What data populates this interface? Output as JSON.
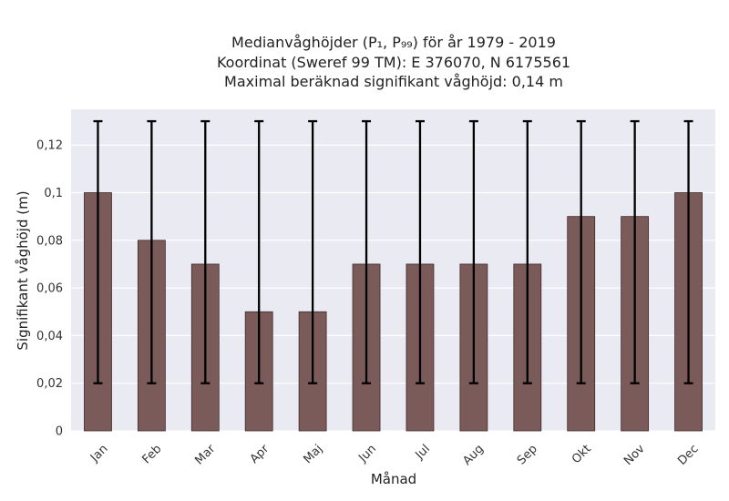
{
  "chart_data": {
    "type": "bar",
    "title_lines": [
      "Medianvåghöjder (P₁, P₉₉) för år 1979 - 2019",
      "Koordinat (Sweref 99 TM): E 376070, N 6175561",
      "Maximal beräknad signifikant våghöjd: 0,14 m"
    ],
    "xlabel": "Månad",
    "ylabel": "Signifikant våghöjd (m)",
    "categories": [
      "Jan",
      "Feb",
      "Mar",
      "Apr",
      "Maj",
      "Jun",
      "Jul",
      "Aug",
      "Sep",
      "Okt",
      "Nov",
      "Dec"
    ],
    "values": [
      0.1,
      0.08,
      0.07,
      0.05,
      0.05,
      0.07,
      0.07,
      0.07,
      0.07,
      0.09,
      0.09,
      0.1
    ],
    "p1": [
      0.02,
      0.02,
      0.02,
      0.02,
      0.02,
      0.02,
      0.02,
      0.02,
      0.02,
      0.02,
      0.02,
      0.02
    ],
    "p99": [
      0.13,
      0.13,
      0.13,
      0.13,
      0.13,
      0.13,
      0.13,
      0.13,
      0.13,
      0.13,
      0.13,
      0.13
    ],
    "ylim": [
      0,
      0.135
    ],
    "yticks": [
      0,
      0.02,
      0.04,
      0.06,
      0.08,
      0.1,
      0.12
    ],
    "ytick_labels": [
      "0",
      "0,02",
      "0,04",
      "0,06",
      "0,08",
      "0,1",
      "0,12"
    ],
    "grid": true,
    "colors": {
      "bar": "#7b5a5a",
      "bar_edge": "#3d2b2b",
      "error_bar": "#000000",
      "plot_bg": "#eaeaf2",
      "grid": "#ffffff"
    }
  }
}
